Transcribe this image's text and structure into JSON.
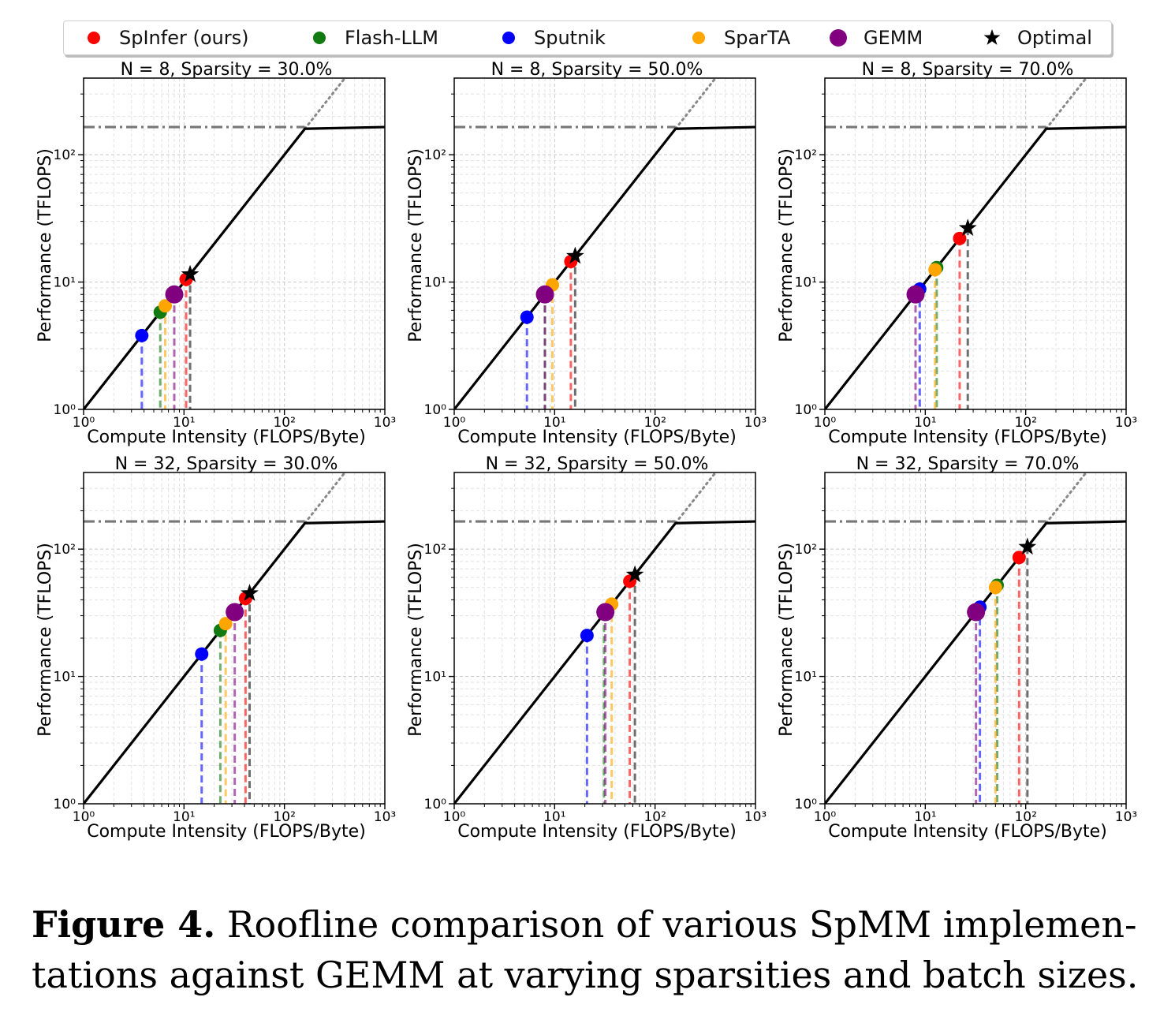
{
  "legend": [
    {
      "name": "SpInfer (ours)",
      "color": "#ff0000",
      "marker": "dot"
    },
    {
      "name": "Flash-LLM",
      "color": "#117a11",
      "marker": "dot"
    },
    {
      "name": "Sputnik",
      "color": "#0000ff",
      "marker": "dot"
    },
    {
      "name": "SparTA",
      "color": "#ffa500",
      "marker": "dot"
    },
    {
      "name": "GEMM",
      "color": "#800080",
      "marker": "big-dot"
    },
    {
      "name": "Optimal",
      "color": "#000000",
      "marker": "star-icon"
    }
  ],
  "caption": {
    "label": "Figure 4.",
    "line1": " Roofline comparison of various SpMM implemen-",
    "line2": "tations against GEMM at varying sparsities and batch sizes."
  },
  "chart_data": [
    {
      "type": "scatter",
      "title": "N = 8, Sparsity = 30.0%",
      "xlabel": "Compute Intensity (FLOPS/Byte)",
      "ylabel": "Performance (TFLOPS)",
      "xscale": "log",
      "yscale": "log",
      "xlim": [
        1,
        1000
      ],
      "ylim": [
        1,
        400
      ],
      "xticks": [
        "10^0",
        "10^1",
        "10^2",
        "10^3"
      ],
      "yticks": [
        "10^0",
        "10^1",
        "10^2"
      ],
      "roof_tflops": 165,
      "ridge_intensity": 160,
      "grid": true,
      "series": [
        {
          "name": "Sputnik",
          "x": 3.8,
          "y": 3.8
        },
        {
          "name": "Flash-LLM",
          "x": 5.8,
          "y": 5.8
        },
        {
          "name": "SparTA",
          "x": 6.5,
          "y": 6.5
        },
        {
          "name": "GEMM",
          "x": 8.0,
          "y": 8.0
        },
        {
          "name": "SpInfer (ours)",
          "x": 10.5,
          "y": 10.5
        },
        {
          "name": "Optimal",
          "x": 11.5,
          "y": 11.5
        }
      ]
    },
    {
      "type": "scatter",
      "title": "N = 8, Sparsity = 50.0%",
      "xlabel": "Compute Intensity (FLOPS/Byte)",
      "ylabel": "Performance (TFLOPS)",
      "xscale": "log",
      "yscale": "log",
      "xlim": [
        1,
        1000
      ],
      "ylim": [
        1,
        400
      ],
      "xticks": [
        "10^0",
        "10^1",
        "10^2",
        "10^3"
      ],
      "yticks": [
        "10^0",
        "10^1",
        "10^2"
      ],
      "roof_tflops": 165,
      "ridge_intensity": 160,
      "grid": true,
      "series": [
        {
          "name": "Sputnik",
          "x": 5.3,
          "y": 5.3
        },
        {
          "name": "Flash-LLM",
          "x": 8.0,
          "y": 8.0
        },
        {
          "name": "SparTA",
          "x": 9.5,
          "y": 9.5
        },
        {
          "name": "GEMM",
          "x": 8.0,
          "y": 8.0
        },
        {
          "name": "SpInfer (ours)",
          "x": 14.5,
          "y": 14.5
        },
        {
          "name": "Optimal",
          "x": 16.0,
          "y": 16.0
        }
      ]
    },
    {
      "type": "scatter",
      "title": "N = 8, Sparsity = 70.0%",
      "xlabel": "Compute Intensity (FLOPS/Byte)",
      "ylabel": "Performance (TFLOPS)",
      "xscale": "log",
      "yscale": "log",
      "xlim": [
        1,
        1000
      ],
      "ylim": [
        1,
        400
      ],
      "xticks": [
        "10^0",
        "10^1",
        "10^2",
        "10^3"
      ],
      "yticks": [
        "10^0",
        "10^1",
        "10^2"
      ],
      "roof_tflops": 165,
      "ridge_intensity": 160,
      "grid": true,
      "series": [
        {
          "name": "Sputnik",
          "x": 8.8,
          "y": 8.8
        },
        {
          "name": "Flash-LLM",
          "x": 13.0,
          "y": 13.0
        },
        {
          "name": "SparTA",
          "x": 12.5,
          "y": 12.5
        },
        {
          "name": "GEMM",
          "x": 8.0,
          "y": 8.0
        },
        {
          "name": "SpInfer (ours)",
          "x": 22.0,
          "y": 22.0
        },
        {
          "name": "Optimal",
          "x": 26.5,
          "y": 26.5
        }
      ]
    },
    {
      "type": "scatter",
      "title": "N = 32, Sparsity = 30.0%",
      "xlabel": "Compute Intensity (FLOPS/Byte)",
      "ylabel": "Performance (TFLOPS)",
      "xscale": "log",
      "yscale": "log",
      "xlim": [
        1,
        1000
      ],
      "ylim": [
        1,
        400
      ],
      "xticks": [
        "10^0",
        "10^1",
        "10^2",
        "10^3"
      ],
      "yticks": [
        "10^0",
        "10^1",
        "10^2"
      ],
      "roof_tflops": 165,
      "ridge_intensity": 160,
      "grid": true,
      "series": [
        {
          "name": "Sputnik",
          "x": 15.0,
          "y": 15.0
        },
        {
          "name": "Flash-LLM",
          "x": 23.0,
          "y": 23.0
        },
        {
          "name": "SparTA",
          "x": 26.0,
          "y": 26.0
        },
        {
          "name": "GEMM",
          "x": 32.0,
          "y": 32.0
        },
        {
          "name": "SpInfer (ours)",
          "x": 41.0,
          "y": 41.0
        },
        {
          "name": "Optimal",
          "x": 45.0,
          "y": 45.0
        }
      ]
    },
    {
      "type": "scatter",
      "title": "N = 32, Sparsity = 50.0%",
      "xlabel": "Compute Intensity (FLOPS/Byte)",
      "ylabel": "Performance (TFLOPS)",
      "xscale": "log",
      "yscale": "log",
      "xlim": [
        1,
        1000
      ],
      "ylim": [
        1,
        400
      ],
      "xticks": [
        "10^0",
        "10^1",
        "10^2",
        "10^3"
      ],
      "yticks": [
        "10^0",
        "10^1",
        "10^2"
      ],
      "roof_tflops": 165,
      "ridge_intensity": 160,
      "grid": true,
      "series": [
        {
          "name": "Sputnik",
          "x": 21.0,
          "y": 21.0
        },
        {
          "name": "Flash-LLM",
          "x": 31.0,
          "y": 31.0
        },
        {
          "name": "SparTA",
          "x": 37.0,
          "y": 37.0
        },
        {
          "name": "GEMM",
          "x": 32.0,
          "y": 32.0
        },
        {
          "name": "SpInfer (ours)",
          "x": 56.0,
          "y": 56.0
        },
        {
          "name": "Optimal",
          "x": 63.0,
          "y": 63.0
        }
      ]
    },
    {
      "type": "scatter",
      "title": "N = 32, Sparsity = 70.0%",
      "xlabel": "Compute Intensity (FLOPS/Byte)",
      "ylabel": "Performance (TFLOPS)",
      "xscale": "log",
      "yscale": "log",
      "xlim": [
        1,
        1000
      ],
      "ylim": [
        1,
        400
      ],
      "xticks": [
        "10^0",
        "10^1",
        "10^2",
        "10^3"
      ],
      "yticks": [
        "10^0",
        "10^1",
        "10^2"
      ],
      "roof_tflops": 165,
      "ridge_intensity": 160,
      "grid": true,
      "series": [
        {
          "name": "Sputnik",
          "x": 35.0,
          "y": 35.0
        },
        {
          "name": "Flash-LLM",
          "x": 52.0,
          "y": 52.0
        },
        {
          "name": "SparTA",
          "x": 50.0,
          "y": 50.0
        },
        {
          "name": "GEMM",
          "x": 32.0,
          "y": 32.0
        },
        {
          "name": "SpInfer (ours)",
          "x": 86.0,
          "y": 86.0
        },
        {
          "name": "Optimal",
          "x": 104.0,
          "y": 104.0
        }
      ]
    }
  ]
}
